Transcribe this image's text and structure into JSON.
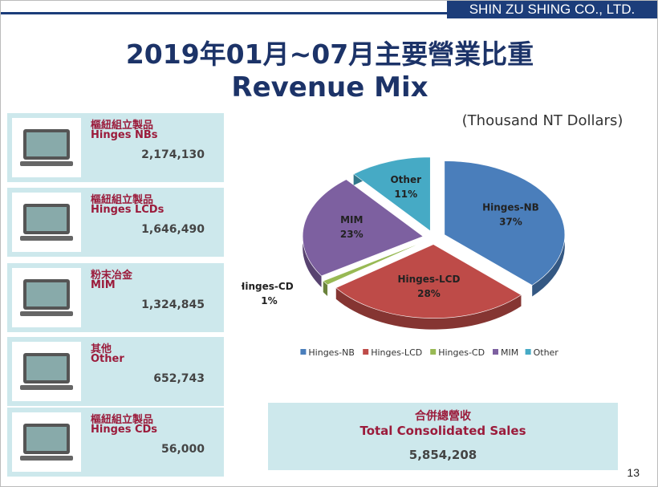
{
  "header": {
    "company": "SHIN ZU SHING CO., LTD."
  },
  "title": {
    "line1": "2019年01月~07月主要營業比重",
    "line2": "Revenue Mix"
  },
  "products": [
    {
      "name_zh": "樞紐組立製品",
      "name_en": "Hinges  NBs",
      "value": "2,174,130"
    },
    {
      "name_zh": "樞紐組立製品",
      "name_en": "Hinges  LCDs",
      "value": "1,646,490"
    },
    {
      "name_zh": "粉末冶金",
      "name_en": "MIM",
      "value": "1,324,845"
    },
    {
      "name_zh": "其他",
      "name_en": "Other",
      "value": "652,743"
    },
    {
      "name_zh": "樞紐組立製品",
      "name_en": "Hinges  CDs",
      "value": "56,000"
    }
  ],
  "total": {
    "label_zh": "合併總營收",
    "label_en": "Total Consolidated Sales",
    "value": "5,854,208"
  },
  "page_number": "13",
  "chart_data": {
    "type": "pie",
    "subtitle": "(Thousand NT Dollars)",
    "categories": [
      "Hinges-NB",
      "Hinges-LCD",
      "Hinges-CD",
      "MIM",
      "Other"
    ],
    "values": [
      37,
      28,
      1,
      23,
      11
    ],
    "value_labels": [
      "37%",
      "28%",
      "1%",
      "23%",
      "11%"
    ],
    "colors": [
      "#4a7ebb",
      "#be4b48",
      "#98b954",
      "#7d60a0",
      "#46aac5"
    ],
    "legend": "bottom"
  }
}
